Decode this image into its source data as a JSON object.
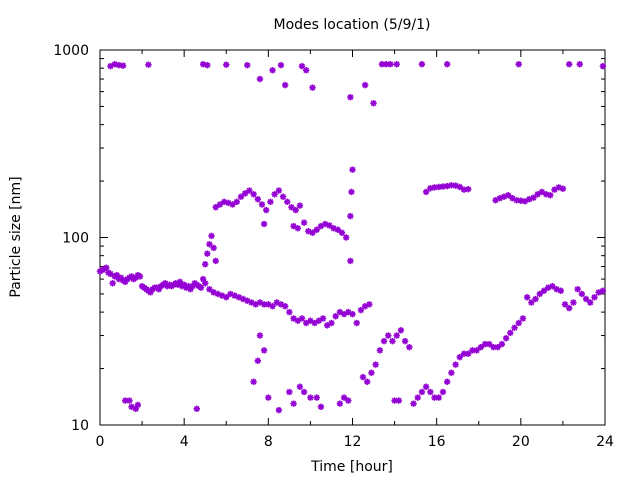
{
  "chart_data": {
    "type": "scatter",
    "title": "Modes location (5/9/1)",
    "xlabel": "Time [hour]",
    "ylabel": "Particle size [nm]",
    "x_ticks": [
      "0",
      "4",
      "8",
      "12",
      "16",
      "20",
      "24"
    ],
    "y_ticks": [
      "10",
      "100",
      "1000"
    ],
    "xlim": [
      0,
      24
    ],
    "ylim": [
      10,
      1000
    ],
    "y_scale": "log",
    "grid": false,
    "legend": "none",
    "marker_color": "#9400d3",
    "series": [
      {
        "values": [
          [
            0.0,
            66
          ],
          [
            0.1,
            67
          ],
          [
            0.2,
            68
          ],
          [
            0.3,
            69
          ],
          [
            0.4,
            65
          ],
          [
            0.5,
            64
          ],
          [
            0.6,
            57
          ],
          [
            0.7,
            62
          ],
          [
            0.8,
            63
          ],
          [
            0.9,
            60
          ],
          [
            1.0,
            61
          ],
          [
            1.1,
            59
          ],
          [
            1.2,
            58
          ],
          [
            1.3,
            60
          ],
          [
            1.4,
            61
          ],
          [
            1.5,
            62
          ],
          [
            1.6,
            60
          ],
          [
            1.7,
            61
          ],
          [
            1.8,
            63
          ],
          [
            1.9,
            62
          ],
          [
            2.0,
            55
          ],
          [
            2.1,
            54
          ],
          [
            2.2,
            53
          ],
          [
            2.3,
            52
          ],
          [
            2.4,
            51
          ],
          [
            2.5,
            53
          ],
          [
            2.6,
            54
          ],
          [
            2.7,
            54
          ],
          [
            2.8,
            53
          ],
          [
            2.9,
            55
          ],
          [
            3.0,
            56
          ],
          [
            3.1,
            57
          ],
          [
            3.2,
            55
          ],
          [
            3.3,
            56
          ],
          [
            3.4,
            55
          ],
          [
            3.5,
            56
          ],
          [
            3.6,
            57
          ],
          [
            3.7,
            56
          ],
          [
            3.8,
            58
          ],
          [
            3.9,
            55
          ],
          [
            4.0,
            56
          ],
          [
            4.1,
            54
          ],
          [
            4.2,
            55
          ],
          [
            4.3,
            53
          ],
          [
            4.4,
            55
          ],
          [
            4.5,
            57
          ],
          [
            4.6,
            56
          ],
          [
            4.7,
            55
          ],
          [
            4.8,
            54
          ],
          [
            5.0,
            57
          ],
          [
            5.2,
            53
          ],
          [
            5.4,
            51
          ],
          [
            5.6,
            50
          ],
          [
            5.8,
            49
          ],
          [
            6.0,
            48
          ],
          [
            6.2,
            50
          ],
          [
            6.4,
            49
          ],
          [
            6.6,
            48
          ],
          [
            6.8,
            47
          ],
          [
            7.0,
            46
          ],
          [
            7.2,
            45
          ],
          [
            7.4,
            44
          ],
          [
            7.6,
            45
          ],
          [
            7.8,
            44
          ],
          [
            8.0,
            44
          ],
          [
            8.2,
            43
          ],
          [
            8.4,
            45
          ],
          [
            8.6,
            44
          ],
          [
            8.8,
            43
          ],
          [
            9.0,
            40
          ],
          [
            9.2,
            37
          ],
          [
            9.4,
            36
          ],
          [
            9.6,
            37
          ],
          [
            9.8,
            35
          ],
          [
            10.0,
            36
          ],
          [
            10.2,
            35
          ],
          [
            10.4,
            36
          ],
          [
            10.6,
            37
          ],
          [
            10.8,
            34
          ],
          [
            11.0,
            35
          ],
          [
            11.2,
            38
          ],
          [
            11.4,
            40
          ],
          [
            11.6,
            39
          ],
          [
            11.8,
            40
          ],
          [
            12.0,
            39
          ],
          [
            12.2,
            35
          ],
          [
            12.4,
            41
          ],
          [
            12.6,
            43
          ],
          [
            12.8,
            44
          ],
          [
            12.5,
            18
          ],
          [
            12.7,
            17
          ],
          [
            12.9,
            19
          ],
          [
            13.1,
            21
          ],
          [
            13.3,
            25
          ],
          [
            13.5,
            28
          ],
          [
            13.7,
            30
          ],
          [
            13.9,
            28
          ],
          [
            14.1,
            30
          ],
          [
            14.3,
            32
          ],
          [
            14.5,
            28
          ],
          [
            14.7,
            26
          ],
          [
            14.0,
            13.5
          ],
          [
            14.2,
            13.5
          ],
          [
            14.9,
            13
          ],
          [
            15.1,
            14
          ],
          [
            15.3,
            15
          ],
          [
            15.5,
            16
          ],
          [
            15.7,
            15
          ],
          [
            15.9,
            14
          ],
          [
            16.1,
            14
          ],
          [
            16.3,
            15
          ],
          [
            16.5,
            17
          ],
          [
            16.7,
            19
          ],
          [
            16.9,
            21
          ],
          [
            17.1,
            23
          ],
          [
            17.3,
            24
          ],
          [
            17.5,
            24
          ],
          [
            17.7,
            25
          ],
          [
            17.9,
            25
          ],
          [
            18.1,
            26
          ],
          [
            18.3,
            27
          ],
          [
            18.5,
            27
          ],
          [
            18.7,
            26
          ],
          [
            18.9,
            26
          ],
          [
            19.1,
            27
          ],
          [
            19.3,
            29
          ],
          [
            19.5,
            31
          ],
          [
            19.7,
            33
          ],
          [
            19.9,
            35
          ],
          [
            20.1,
            37
          ],
          [
            20.3,
            48
          ],
          [
            20.5,
            45
          ],
          [
            20.7,
            47
          ],
          [
            20.9,
            50
          ],
          [
            21.1,
            52
          ],
          [
            21.3,
            54
          ],
          [
            21.5,
            55
          ],
          [
            21.7,
            53
          ],
          [
            21.9,
            52
          ],
          [
            22.1,
            44
          ],
          [
            22.3,
            42
          ],
          [
            22.5,
            45
          ],
          [
            22.7,
            53
          ],
          [
            22.9,
            50
          ],
          [
            23.1,
            47
          ],
          [
            23.3,
            45
          ],
          [
            23.5,
            48
          ],
          [
            23.7,
            51
          ],
          [
            23.9,
            52
          ],
          [
            4.9,
            60
          ],
          [
            5.0,
            72
          ],
          [
            5.1,
            82
          ],
          [
            5.2,
            92
          ],
          [
            5.3,
            102
          ],
          [
            5.4,
            88
          ],
          [
            5.5,
            75
          ],
          [
            5.5,
            145
          ],
          [
            5.7,
            150
          ],
          [
            5.9,
            155
          ],
          [
            6.1,
            153
          ],
          [
            6.3,
            150
          ],
          [
            6.5,
            155
          ],
          [
            6.7,
            165
          ],
          [
            6.9,
            172
          ],
          [
            7.1,
            178
          ],
          [
            7.3,
            170
          ],
          [
            7.5,
            160
          ],
          [
            7.7,
            150
          ],
          [
            7.9,
            140
          ],
          [
            7.8,
            118
          ],
          [
            8.1,
            155
          ],
          [
            8.3,
            170
          ],
          [
            8.5,
            178
          ],
          [
            8.7,
            165
          ],
          [
            8.9,
            155
          ],
          [
            9.1,
            145
          ],
          [
            9.3,
            140
          ],
          [
            9.5,
            148
          ],
          [
            9.2,
            115
          ],
          [
            9.4,
            112
          ],
          [
            9.7,
            120
          ],
          [
            9.9,
            108
          ],
          [
            10.1,
            106
          ],
          [
            10.3,
            110
          ],
          [
            10.5,
            115
          ],
          [
            10.7,
            118
          ],
          [
            10.9,
            116
          ],
          [
            11.1,
            112
          ],
          [
            11.3,
            110
          ],
          [
            11.5,
            106
          ],
          [
            11.7,
            100
          ],
          [
            11.9,
            130
          ],
          [
            11.95,
            175
          ],
          [
            12.0,
            230
          ],
          [
            11.9,
            75
          ],
          [
            15.5,
            175
          ],
          [
            15.7,
            183
          ],
          [
            15.9,
            185
          ],
          [
            16.1,
            186
          ],
          [
            16.3,
            187
          ],
          [
            16.5,
            188
          ],
          [
            16.7,
            190
          ],
          [
            16.9,
            189
          ],
          [
            17.1,
            186
          ],
          [
            17.3,
            180
          ],
          [
            17.5,
            181
          ],
          [
            18.8,
            158
          ],
          [
            19.0,
            162
          ],
          [
            19.2,
            165
          ],
          [
            19.4,
            168
          ],
          [
            19.6,
            162
          ],
          [
            19.8,
            158
          ],
          [
            20.0,
            157
          ],
          [
            20.2,
            156
          ],
          [
            20.4,
            160
          ],
          [
            20.6,
            163
          ],
          [
            20.8,
            170
          ],
          [
            21.0,
            175
          ],
          [
            21.2,
            170
          ],
          [
            21.4,
            168
          ],
          [
            21.6,
            180
          ],
          [
            21.8,
            185
          ],
          [
            22.0,
            182
          ],
          [
            0.5,
            820
          ],
          [
            0.7,
            840
          ],
          [
            0.9,
            830
          ],
          [
            1.1,
            825
          ],
          [
            2.3,
            835
          ],
          [
            4.9,
            840
          ],
          [
            5.1,
            830
          ],
          [
            6.0,
            835
          ],
          [
            7.0,
            830
          ],
          [
            7.6,
            700
          ],
          [
            8.2,
            780
          ],
          [
            8.6,
            830
          ],
          [
            8.8,
            650
          ],
          [
            9.6,
            820
          ],
          [
            9.8,
            780
          ],
          [
            10.1,
            630
          ],
          [
            11.9,
            560
          ],
          [
            12.6,
            650
          ],
          [
            13.0,
            520
          ],
          [
            13.4,
            840
          ],
          [
            13.6,
            840
          ],
          [
            13.8,
            840
          ],
          [
            14.1,
            840
          ],
          [
            15.3,
            840
          ],
          [
            16.5,
            840
          ],
          [
            19.9,
            840
          ],
          [
            22.3,
            840
          ],
          [
            22.8,
            840
          ],
          [
            23.9,
            820
          ],
          [
            1.2,
            13.5
          ],
          [
            1.4,
            13.5
          ],
          [
            1.5,
            12.5
          ],
          [
            1.7,
            12.2
          ],
          [
            1.8,
            12.8
          ],
          [
            4.6,
            12.2
          ],
          [
            7.3,
            17
          ],
          [
            7.5,
            22
          ],
          [
            7.6,
            30
          ],
          [
            7.8,
            25
          ],
          [
            8.0,
            14
          ],
          [
            8.5,
            12
          ],
          [
            9.0,
            15
          ],
          [
            9.2,
            13
          ],
          [
            9.5,
            16
          ],
          [
            9.7,
            15
          ],
          [
            10.0,
            14
          ],
          [
            10.3,
            14
          ],
          [
            10.5,
            12.5
          ],
          [
            11.4,
            13
          ],
          [
            11.6,
            14
          ],
          [
            11.8,
            13.5
          ]
        ]
      }
    ]
  }
}
